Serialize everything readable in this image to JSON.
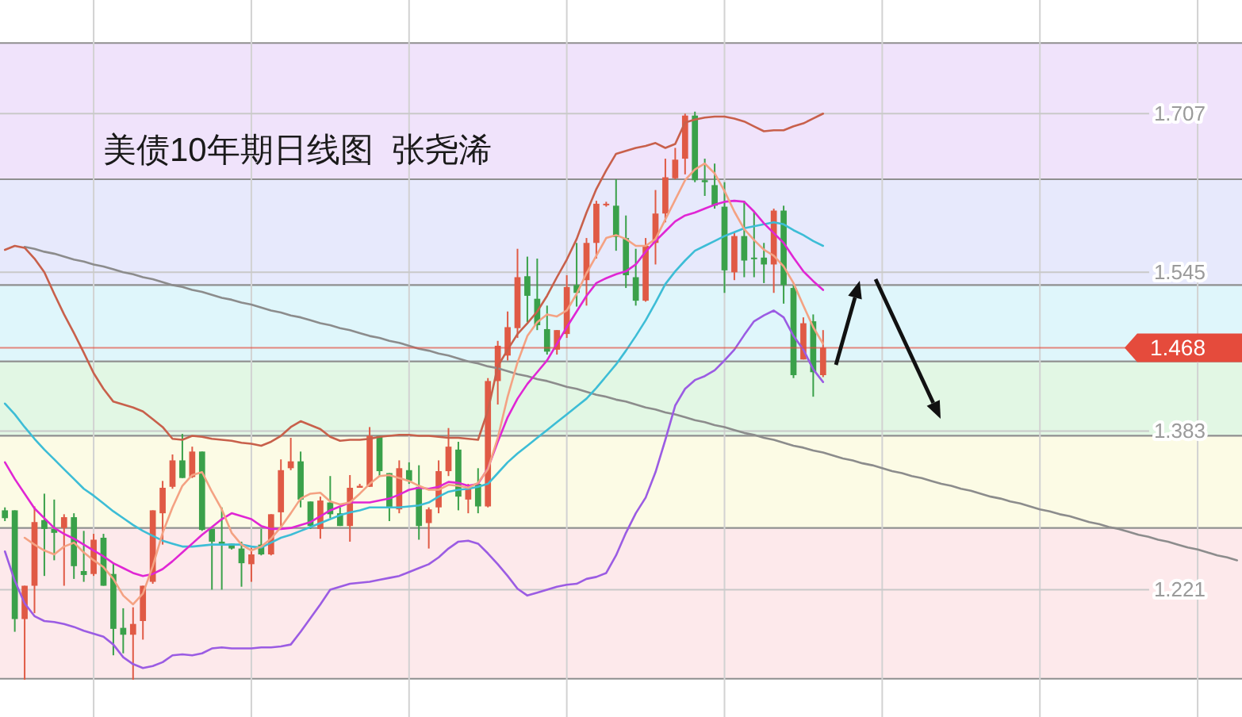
{
  "chart_data": {
    "type": "candlestick",
    "title": "美债10年期日线图  张尧浠",
    "categories": [
      null,
      null,
      null,
      null,
      null,
      null,
      null,
      null,
      null,
      null,
      null,
      null,
      null,
      null,
      null,
      null,
      null,
      null,
      null,
      null,
      null,
      null,
      null,
      null,
      null,
      null,
      null,
      null,
      null,
      null,
      null,
      null,
      null,
      null,
      null,
      null,
      null,
      null,
      null,
      null,
      null,
      null,
      null,
      null,
      null,
      null,
      null,
      null,
      null,
      null,
      null,
      null,
      null,
      null,
      null,
      null,
      null,
      null,
      null,
      null,
      null,
      null,
      null,
      null,
      null,
      null,
      null,
      null,
      null,
      null,
      null,
      null,
      null,
      null,
      null,
      null,
      null,
      null,
      null,
      null,
      null,
      null,
      null,
      null,
      null,
      null,
      null,
      null,
      null,
      null,
      null,
      null,
      null,
      null,
      null,
      null,
      null,
      null,
      null,
      null,
      null,
      null,
      null,
      null,
      null,
      null,
      null,
      null,
      null,
      null,
      null,
      null,
      null,
      null,
      null,
      null,
      null,
      null,
      null,
      null,
      null,
      null,
      null,
      null,
      null,
      null
    ],
    "ohlc": [
      [
        1.302,
        1.305,
        1.291,
        1.294
      ],
      [
        1.302,
        1.302,
        1.178,
        1.191
      ],
      [
        1.191,
        1.225,
        1.129,
        1.225
      ],
      [
        1.225,
        1.306,
        1.197,
        1.29
      ],
      [
        1.292,
        1.319,
        1.235,
        1.283
      ],
      [
        1.283,
        1.313,
        1.251,
        1.279
      ],
      [
        1.284,
        1.298,
        1.225,
        1.295
      ],
      [
        1.295,
        1.299,
        1.232,
        1.245
      ],
      [
        1.24,
        1.281,
        1.229,
        1.236
      ],
      [
        1.237,
        1.278,
        1.235,
        1.272
      ],
      [
        1.274,
        1.278,
        1.225,
        1.225
      ],
      [
        1.237,
        1.248,
        1.154,
        1.181
      ],
      [
        1.182,
        1.202,
        1.156,
        1.175
      ],
      [
        1.175,
        1.203,
        1.129,
        1.186
      ],
      [
        1.189,
        1.225,
        1.17,
        1.225
      ],
      [
        1.229,
        1.302,
        1.227,
        1.302
      ],
      [
        1.299,
        1.332,
        1.267,
        1.325
      ],
      [
        1.326,
        1.359,
        1.324,
        1.353
      ],
      [
        1.353,
        1.38,
        1.335,
        1.335
      ],
      [
        1.336,
        1.367,
        1.335,
        1.362
      ],
      [
        1.362,
        1.362,
        1.281,
        1.282
      ],
      [
        1.283,
        1.283,
        1.221,
        1.27
      ],
      [
        1.27,
        1.305,
        1.221,
        1.267
      ],
      [
        1.268,
        1.268,
        1.262,
        1.263
      ],
      [
        1.263,
        1.27,
        1.224,
        1.248
      ],
      [
        1.247,
        1.264,
        1.229,
        1.257
      ],
      [
        1.267,
        1.283,
        1.256,
        1.257
      ],
      [
        1.257,
        1.298,
        1.256,
        1.298
      ],
      [
        1.3,
        1.354,
        1.286,
        1.343
      ],
      [
        1.345,
        1.376,
        1.343,
        1.352
      ],
      [
        1.352,
        1.362,
        1.305,
        1.313
      ],
      [
        1.311,
        1.311,
        1.283,
        1.286
      ],
      [
        1.283,
        1.316,
        1.273,
        1.312
      ],
      [
        1.31,
        1.337,
        1.294,
        1.298
      ],
      [
        1.299,
        1.305,
        1.286,
        1.286
      ],
      [
        1.286,
        1.338,
        1.27,
        1.325
      ],
      [
        1.325,
        1.329,
        1.325,
        1.327
      ],
      [
        1.326,
        1.387,
        1.326,
        1.378
      ],
      [
        1.378,
        1.378,
        1.337,
        1.342
      ],
      [
        1.34,
        1.34,
        1.291,
        1.305
      ],
      [
        1.303,
        1.353,
        1.299,
        1.345
      ],
      [
        1.343,
        1.351,
        1.329,
        1.332
      ],
      [
        1.326,
        1.348,
        1.272,
        1.286
      ],
      [
        1.289,
        1.305,
        1.263,
        1.303
      ],
      [
        1.305,
        1.353,
        1.299,
        1.342
      ],
      [
        1.342,
        1.386,
        1.337,
        1.367
      ],
      [
        1.364,
        1.372,
        1.302,
        1.316
      ],
      [
        1.313,
        1.329,
        1.299,
        1.325
      ],
      [
        1.329,
        1.345,
        1.299,
        1.306
      ],
      [
        1.306,
        1.437,
        1.305,
        1.434
      ],
      [
        1.434,
        1.475,
        1.41,
        1.47
      ],
      [
        1.46,
        1.505,
        1.455,
        1.489
      ],
      [
        1.488,
        1.569,
        1.478,
        1.54
      ],
      [
        1.541,
        1.561,
        1.494,
        1.521
      ],
      [
        1.518,
        1.559,
        1.486,
        1.491
      ],
      [
        1.487,
        1.511,
        1.461,
        1.464
      ],
      [
        1.466,
        1.486,
        1.461,
        1.486
      ],
      [
        1.482,
        1.542,
        1.478,
        1.53
      ],
      [
        1.532,
        1.575,
        1.51,
        1.524
      ],
      [
        1.537,
        1.58,
        1.511,
        1.575
      ],
      [
        1.575,
        1.618,
        1.559,
        1.615
      ],
      [
        1.614,
        1.617,
        1.612,
        1.615
      ],
      [
        1.613,
        1.64,
        1.567,
        1.581
      ],
      [
        1.58,
        1.603,
        1.529,
        1.542
      ],
      [
        1.54,
        1.569,
        1.511,
        1.516
      ],
      [
        1.516,
        1.58,
        1.515,
        1.572
      ],
      [
        1.575,
        1.629,
        1.553,
        1.605
      ],
      [
        1.605,
        1.661,
        1.596,
        1.642
      ],
      [
        1.641,
        1.672,
        1.64,
        1.66
      ],
      [
        1.661,
        1.707,
        1.645,
        1.705
      ],
      [
        1.705,
        1.709,
        1.637,
        1.639
      ],
      [
        1.639,
        1.661,
        1.623,
        1.637
      ],
      [
        1.634,
        1.656,
        1.61,
        1.613
      ],
      [
        1.612,
        1.637,
        1.524,
        1.547
      ],
      [
        1.545,
        1.586,
        1.537,
        1.582
      ],
      [
        1.582,
        1.618,
        1.54,
        1.557
      ],
      [
        1.56,
        1.607,
        1.54,
        1.559
      ],
      [
        1.56,
        1.575,
        1.534,
        1.553
      ],
      [
        1.553,
        1.61,
        1.524,
        1.608
      ],
      [
        1.608,
        1.613,
        1.513,
        1.532
      ],
      [
        1.529,
        1.532,
        1.437,
        1.44
      ],
      [
        1.456,
        1.499,
        1.456,
        1.493
      ],
      [
        1.495,
        1.502,
        1.418,
        1.443
      ],
      [
        1.44,
        1.486,
        1.438,
        1.468
      ],
      null,
      null,
      null,
      null,
      null,
      null,
      null,
      null,
      null,
      null,
      null,
      null,
      null,
      null,
      null,
      null,
      null,
      null,
      null,
      null,
      null,
      null,
      null,
      null,
      null,
      null,
      null,
      null,
      null,
      null,
      null,
      null,
      null,
      null,
      null,
      null,
      null,
      null,
      null,
      null,
      null,
      null
    ],
    "series": [
      {
        "type": "line",
        "color": "#8c8c8c",
        "values": [
          null,
          null,
          1.571,
          1.569,
          1.566,
          1.564,
          1.561,
          1.558,
          1.556,
          1.553,
          1.551,
          1.548,
          1.545,
          1.543,
          1.54,
          1.538,
          1.535,
          1.532,
          1.53,
          1.527,
          1.525,
          1.522,
          1.519,
          1.517,
          1.514,
          1.512,
          1.509,
          1.506,
          1.504,
          1.501,
          1.499,
          1.496,
          1.493,
          1.491,
          1.488,
          1.486,
          1.483,
          1.48,
          1.478,
          1.475,
          1.473,
          1.47,
          1.467,
          1.465,
          1.462,
          1.46,
          1.457,
          1.454,
          1.452,
          1.449,
          1.447,
          1.444,
          1.441,
          1.439,
          1.436,
          1.434,
          1.431,
          1.428,
          1.426,
          1.423,
          1.42,
          1.418,
          1.415,
          1.413,
          1.41,
          1.407,
          1.405,
          1.402,
          1.4,
          1.397,
          1.394,
          1.392,
          1.389,
          1.387,
          1.384,
          1.381,
          1.379,
          1.376,
          1.374,
          1.371,
          1.368,
          1.366,
          1.363,
          1.361,
          1.358,
          1.355,
          1.353,
          1.35,
          1.348,
          1.345,
          1.342,
          1.34,
          1.337,
          1.335,
          1.332,
          1.329,
          1.327,
          1.324,
          1.322,
          1.319,
          1.316,
          1.314,
          1.311,
          1.309,
          1.306,
          1.303,
          1.301,
          1.298,
          1.296,
          1.293,
          1.29,
          1.288,
          1.285,
          1.283,
          1.28,
          1.277,
          1.275,
          1.272,
          1.27,
          1.267,
          1.264,
          1.262,
          1.259,
          1.256,
          1.254,
          1.251
        ]
      },
      {
        "type": "line",
        "color": "#c8604b",
        "values": [
          1.568,
          1.572,
          1.57,
          1.559,
          1.545,
          1.523,
          1.502,
          1.483,
          1.463,
          1.442,
          1.426,
          1.413,
          1.41,
          1.407,
          1.403,
          1.395,
          1.387,
          1.375,
          1.374,
          1.378,
          1.377,
          1.375,
          1.374,
          1.373,
          1.371,
          1.37,
          1.368,
          1.372,
          1.378,
          1.387,
          1.393,
          1.389,
          1.385,
          1.377,
          1.373,
          1.374,
          1.374,
          1.375,
          1.377,
          1.378,
          1.379,
          1.379,
          1.378,
          1.378,
          1.377,
          1.376,
          1.376,
          1.375,
          1.374,
          1.404,
          1.449,
          1.466,
          1.482,
          1.493,
          1.505,
          1.521,
          1.54,
          1.558,
          1.579,
          1.606,
          1.63,
          1.649,
          1.666,
          1.669,
          1.672,
          1.674,
          1.677,
          1.672,
          1.676,
          1.698,
          1.701,
          1.703,
          1.704,
          1.704,
          1.702,
          1.699,
          1.694,
          1.689,
          1.69,
          1.69,
          1.694,
          1.697,
          1.702,
          1.707,
          null,
          null,
          null,
          null,
          null,
          null,
          null,
          null,
          null,
          null,
          null,
          null,
          null,
          null,
          null,
          null,
          null,
          null,
          null,
          null,
          null,
          null,
          null,
          null,
          null,
          null,
          null,
          null,
          null,
          null,
          null,
          null,
          null,
          null,
          null,
          null,
          null,
          null,
          null,
          null,
          null,
          null
        ]
      },
      {
        "type": "line",
        "color": "#9b5ce3",
        "values": [
          1.26,
          1.23,
          1.207,
          1.194,
          1.189,
          1.188,
          1.186,
          1.183,
          1.179,
          1.176,
          1.173,
          1.165,
          1.152,
          1.145,
          1.141,
          1.143,
          1.147,
          1.154,
          1.155,
          1.154,
          1.156,
          1.161,
          1.162,
          1.161,
          1.161,
          1.161,
          1.162,
          1.162,
          1.163,
          1.165,
          1.178,
          1.192,
          1.206,
          1.221,
          1.224,
          1.227,
          1.228,
          1.229,
          1.231,
          1.233,
          1.235,
          1.239,
          1.243,
          1.247,
          1.254,
          1.263,
          1.27,
          1.271,
          1.268,
          1.258,
          1.247,
          1.235,
          1.222,
          1.215,
          1.218,
          1.221,
          1.224,
          1.226,
          1.227,
          1.232,
          1.234,
          1.238,
          1.256,
          1.279,
          1.299,
          1.315,
          1.341,
          1.374,
          1.409,
          1.426,
          1.435,
          1.439,
          1.445,
          1.455,
          1.466,
          1.481,
          1.495,
          1.501,
          1.506,
          1.499,
          1.48,
          1.466,
          1.446,
          1.433,
          null,
          null,
          null,
          null,
          null,
          null,
          null,
          null,
          null,
          null,
          null,
          null,
          null,
          null,
          null,
          null,
          null,
          null,
          null,
          null,
          null,
          null,
          null,
          null,
          null,
          null,
          null,
          null,
          null,
          null,
          null,
          null,
          null,
          null,
          null,
          null,
          null,
          null,
          null,
          null,
          null,
          null
        ]
      },
      {
        "type": "line",
        "color": "#3dbdd6",
        "values": [
          1.411,
          1.4,
          1.387,
          1.375,
          1.364,
          1.354,
          1.344,
          1.334,
          1.324,
          1.317,
          1.309,
          1.301,
          1.294,
          1.287,
          1.281,
          1.276,
          1.271,
          1.268,
          1.265,
          1.265,
          1.266,
          1.267,
          1.267,
          1.267,
          1.267,
          1.265,
          1.264,
          1.269,
          1.274,
          1.277,
          1.281,
          1.285,
          1.289,
          1.293,
          1.297,
          1.3,
          1.302,
          1.305,
          1.305,
          1.305,
          1.305,
          1.306,
          1.307,
          1.31,
          1.316,
          1.321,
          1.323,
          1.324,
          1.326,
          1.329,
          1.34,
          1.351,
          1.36,
          1.368,
          1.376,
          1.384,
          1.392,
          1.4,
          1.408,
          1.416,
          1.427,
          1.439,
          1.451,
          1.465,
          1.48,
          1.496,
          1.514,
          1.533,
          1.546,
          1.557,
          1.567,
          1.572,
          1.577,
          1.582,
          1.586,
          1.59,
          1.592,
          1.594,
          1.596,
          1.594,
          1.588,
          1.583,
          1.577,
          1.572,
          null,
          null,
          null,
          null,
          null,
          null,
          null,
          null,
          null,
          null,
          null,
          null,
          null,
          null,
          null,
          null,
          null,
          null,
          null,
          null,
          null,
          null,
          null,
          null,
          null,
          null,
          null,
          null,
          null,
          null,
          null,
          null,
          null,
          null,
          null,
          null,
          null,
          null,
          null,
          null,
          null,
          null
        ]
      },
      {
        "type": "line",
        "color": "#e026d4",
        "values": [
          1.351,
          1.334,
          1.319,
          1.304,
          1.294,
          1.284,
          1.278,
          1.273,
          1.267,
          1.261,
          1.255,
          1.248,
          1.243,
          1.238,
          1.235,
          1.237,
          1.242,
          1.25,
          1.259,
          1.268,
          1.277,
          1.285,
          1.293,
          1.299,
          1.296,
          1.293,
          1.286,
          1.283,
          1.283,
          1.284,
          1.287,
          1.29,
          1.296,
          1.302,
          1.306,
          1.31,
          1.31,
          1.31,
          1.312,
          1.314,
          1.318,
          1.323,
          1.325,
          1.324,
          1.326,
          1.331,
          1.33,
          1.327,
          1.329,
          1.345,
          1.372,
          1.397,
          1.416,
          1.431,
          1.443,
          1.455,
          1.472,
          1.489,
          1.505,
          1.521,
          1.534,
          1.539,
          1.543,
          1.546,
          1.553,
          1.566,
          1.577,
          1.587,
          1.597,
          1.603,
          1.606,
          1.61,
          1.614,
          1.617,
          1.618,
          1.617,
          1.607,
          1.595,
          1.585,
          1.575,
          1.56,
          1.546,
          1.536,
          1.527,
          null,
          null,
          null,
          null,
          null,
          null,
          null,
          null,
          null,
          null,
          null,
          null,
          null,
          null,
          null,
          null,
          null,
          null,
          null,
          null,
          null,
          null,
          null,
          null,
          null,
          null,
          null,
          null,
          null,
          null,
          null,
          null,
          null,
          null,
          null,
          null,
          null,
          null,
          null,
          null,
          null,
          null
        ]
      },
      {
        "type": "line",
        "color": "#f4a283",
        "values": [
          null,
          null,
          1.274,
          1.267,
          1.261,
          1.257,
          1.265,
          1.269,
          1.259,
          1.251,
          1.244,
          1.232,
          1.215,
          1.206,
          1.217,
          1.245,
          1.279,
          1.305,
          1.327,
          1.338,
          1.341,
          1.321,
          1.303,
          1.279,
          1.267,
          1.261,
          1.265,
          1.273,
          1.285,
          1.299,
          1.314,
          1.319,
          1.32,
          1.311,
          1.308,
          1.31,
          1.319,
          1.329,
          1.337,
          1.338,
          1.335,
          1.332,
          1.327,
          1.323,
          1.323,
          1.328,
          1.327,
          1.325,
          1.33,
          1.344,
          1.376,
          1.418,
          1.453,
          1.48,
          1.494,
          1.502,
          1.5,
          1.506,
          1.523,
          1.544,
          1.562,
          1.58,
          1.583,
          1.579,
          1.572,
          1.572,
          1.579,
          1.599,
          1.619,
          1.639,
          1.65,
          1.656,
          1.646,
          1.628,
          1.607,
          1.589,
          1.578,
          1.568,
          1.562,
          1.551,
          1.534,
          1.511,
          1.489,
          1.472,
          null,
          null,
          null,
          null,
          null,
          null,
          null,
          null,
          null,
          null,
          null,
          null,
          null,
          null,
          null,
          null,
          null,
          null,
          null,
          null,
          null,
          null,
          null,
          null,
          null,
          null,
          null,
          null,
          null,
          null,
          null,
          null,
          null,
          null,
          null,
          null,
          null,
          null,
          null,
          null,
          null,
          null
        ]
      }
    ],
    "ylim": [
      1.091,
      1.823
    ],
    "yticks": [
      1.707,
      1.545,
      1.383,
      1.221
    ],
    "tick_labels": "y",
    "grid": "y",
    "ref_lines": [
      {
        "axis": "y",
        "value": 1.468,
        "label": "1.468",
        "color": "#e54b3c"
      }
    ],
    "bands": [
      {
        "axis": "y",
        "from": 1.64,
        "to": 1.779,
        "color": "#f0e3fb"
      },
      {
        "axis": "y",
        "from": 1.532,
        "to": 1.64,
        "color": "#e7e9fc"
      },
      {
        "axis": "y",
        "from": 1.454,
        "to": 1.532,
        "color": "#dff6fb"
      },
      {
        "axis": "y",
        "from": 1.378,
        "to": 1.454,
        "color": "#e2f7e4"
      },
      {
        "axis": "y",
        "from": 1.284,
        "to": 1.378,
        "color": "#fcfbe5"
      },
      {
        "axis": "y",
        "from": 1.13,
        "to": 1.284,
        "color": "#fde9eb"
      }
    ]
  }
}
